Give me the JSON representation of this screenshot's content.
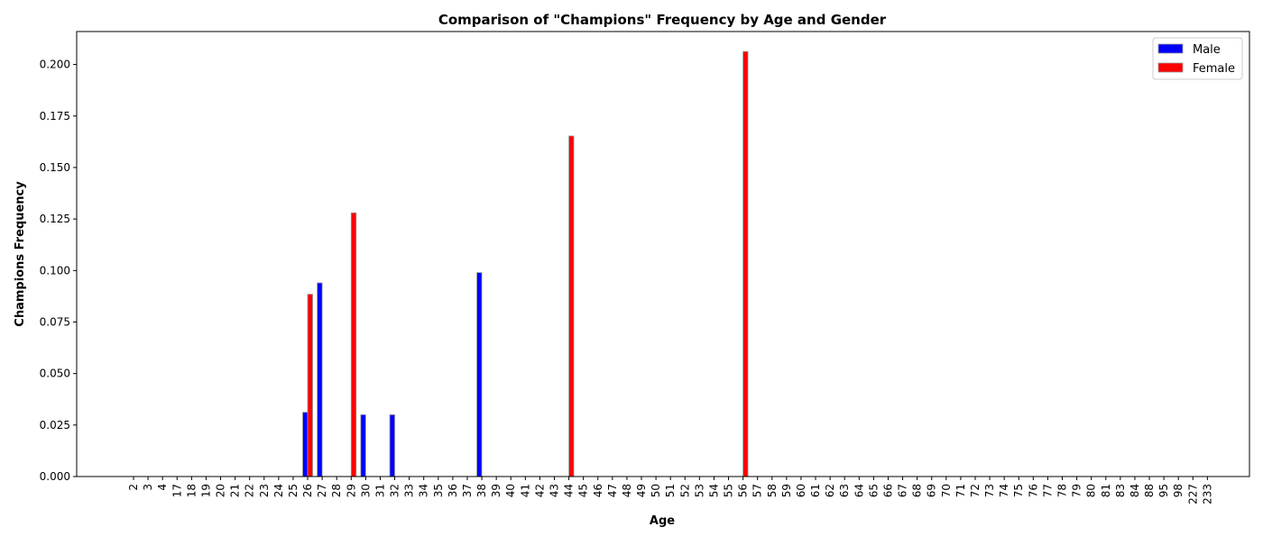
{
  "chart_data": {
    "type": "bar",
    "title": "Comparison of \"Champions\" Frequency by Age and Gender",
    "xlabel": "Age",
    "ylabel": "Champions Frequency",
    "ylim": [
      0,
      0.216
    ],
    "yticks": [
      "0.000",
      "0.025",
      "0.050",
      "0.075",
      "0.100",
      "0.125",
      "0.150",
      "0.175",
      "0.200"
    ],
    "categories": [
      "2",
      "3",
      "4",
      "17",
      "18",
      "19",
      "20",
      "21",
      "22",
      "23",
      "24",
      "25",
      "26",
      "27",
      "28",
      "29",
      "30",
      "31",
      "32",
      "33",
      "34",
      "35",
      "36",
      "37",
      "38",
      "39",
      "40",
      "41",
      "42",
      "43",
      "44",
      "45",
      "46",
      "47",
      "48",
      "49",
      "50",
      "51",
      "52",
      "53",
      "54",
      "55",
      "56",
      "57",
      "58",
      "59",
      "60",
      "61",
      "62",
      "63",
      "64",
      "65",
      "66",
      "67",
      "68",
      "69",
      "70",
      "71",
      "72",
      "73",
      "74",
      "75",
      "76",
      "77",
      "78",
      "79",
      "80",
      "81",
      "83",
      "84",
      "88",
      "95",
      "98",
      "227",
      "233"
    ],
    "series": [
      {
        "name": "Male",
        "color": "#0000ff",
        "values": [
          0,
          0,
          0,
          0,
          0,
          0,
          0,
          0,
          0,
          0,
          0,
          0,
          0.0312,
          0.094,
          0,
          0,
          0.03,
          0,
          0.03,
          0,
          0,
          0,
          0,
          0,
          0.099,
          0,
          0,
          0,
          0,
          0,
          0,
          0,
          0,
          0,
          0,
          0,
          0,
          0,
          0,
          0,
          0,
          0,
          0,
          0,
          0,
          0,
          0,
          0,
          0,
          0,
          0,
          0,
          0,
          0,
          0,
          0,
          0,
          0,
          0,
          0,
          0,
          0,
          0,
          0,
          0,
          0,
          0,
          0,
          0,
          0,
          0,
          0,
          0,
          0,
          0
        ]
      },
      {
        "name": "Female",
        "color": "#ff0000",
        "values": [
          0,
          0,
          0,
          0,
          0,
          0,
          0,
          0,
          0,
          0,
          0,
          0,
          0.0885,
          0,
          0,
          0.128,
          0,
          0,
          0,
          0,
          0,
          0,
          0,
          0,
          0,
          0,
          0,
          0,
          0,
          0,
          0.1653,
          0,
          0,
          0,
          0,
          0,
          0,
          0,
          0,
          0,
          0,
          0,
          0.2063,
          0,
          0,
          0,
          0,
          0,
          0,
          0,
          0,
          0,
          0,
          0,
          0,
          0,
          0,
          0,
          0,
          0,
          0,
          0,
          0,
          0,
          0,
          0,
          0,
          0,
          0,
          0,
          0,
          0,
          0,
          0,
          0
        ]
      }
    ],
    "legend_position": "top-right",
    "grid": false
  }
}
